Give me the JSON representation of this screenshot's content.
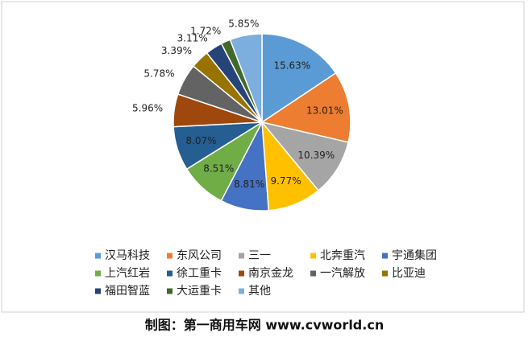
{
  "chart_data": {
    "type": "pie",
    "categories": [
      "汉马科技",
      "东风公司",
      "三一",
      "北奔重汽",
      "宇通集团",
      "上汽红岩",
      "徐工重卡",
      "南京金龙",
      "一汽解放",
      "比亚迪",
      "福田智蓝",
      "大运重卡",
      "其他"
    ],
    "values": [
      15.63,
      13.01,
      10.39,
      9.77,
      8.81,
      8.51,
      8.07,
      5.96,
      5.78,
      3.39,
      3.11,
      1.72,
      5.85
    ],
    "value_labels": [
      "15.63%",
      "13.01%",
      "10.39%",
      "9.77%",
      "8.81%",
      "8.51%",
      "8.07%",
      "5.96%",
      "5.78%",
      "3.39%",
      "3.11%",
      "1.72%",
      "5.85%"
    ],
    "colors": [
      "#5b9bd5",
      "#ed7d31",
      "#a5a5a5",
      "#ffc000",
      "#4472c4",
      "#70ad47",
      "#255e91",
      "#9e480e",
      "#636363",
      "#997300",
      "#264478",
      "#43682b",
      "#7cafdd"
    ],
    "legend": "bottom",
    "caption": "制图：第一商用车网 www.cvworld.cn"
  }
}
